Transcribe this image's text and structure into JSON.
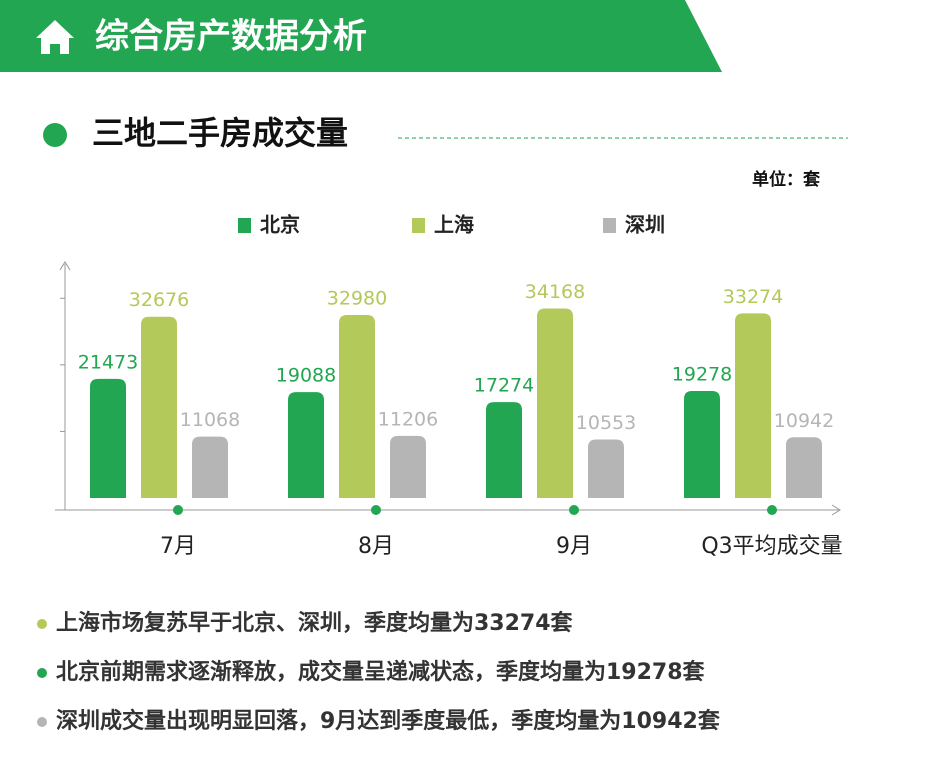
{
  "header": {
    "title": "综合房产数据分析"
  },
  "chart_data": {
    "type": "bar",
    "title": "三地二手房成交量",
    "unit": "单位：套",
    "categories": [
      "7月",
      "8月",
      "9月",
      "Q3平均成交量"
    ],
    "series": [
      {
        "name": "北京",
        "color": "#22a651",
        "values": [
          21473,
          19088,
          17274,
          19278
        ]
      },
      {
        "name": "上海",
        "color": "#b3c95a",
        "values": [
          32676,
          32980,
          34168,
          33274
        ]
      },
      {
        "name": "深圳",
        "color": "#b5b5b5",
        "values": [
          11068,
          11206,
          10553,
          10942
        ]
      }
    ],
    "ylim": [
      0,
      42000
    ],
    "yticks": [
      12000,
      24000,
      36000
    ]
  },
  "notes": [
    {
      "text": "上海市场复苏早于北京、深圳，季度均量为33274套",
      "color": "#b3c95a"
    },
    {
      "text": "北京前期需求逐渐释放，成交量呈递减状态，季度均量为19278套",
      "color": "#22a651"
    },
    {
      "text": "深圳成交量出现明显回落，9月达到季度最低，季度均量为10942套",
      "color": "#b5b5b5"
    }
  ]
}
